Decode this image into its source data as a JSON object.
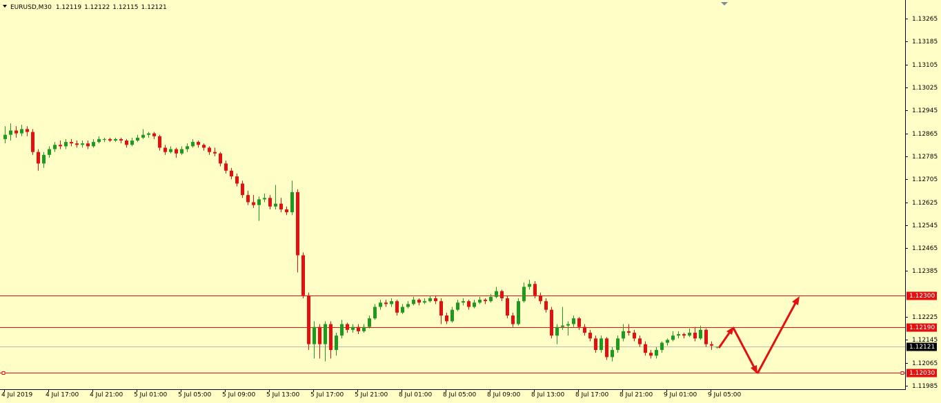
{
  "chart_data": {
    "type": "candlestick",
    "title": "EURUSD,M30",
    "background": "#fefec6",
    "up_color": "#1f9a1f",
    "down_color": "#e31010",
    "current_color": "#b8b8b8",
    "ylim": [
      1.11973,
      1.1333
    ],
    "yticks": [
      1.13265,
      1.13185,
      1.13105,
      1.13025,
      1.12945,
      1.12865,
      1.12785,
      1.12705,
      1.12625,
      1.12545,
      1.12465,
      1.12385,
      1.12225,
      1.12145,
      1.12065,
      1.11985
    ],
    "levels": [
      {
        "value": 1.123,
        "label": "1.12300",
        "color": "#e31010"
      },
      {
        "value": 1.1219,
        "label": "1.12190",
        "color": "#e31010"
      },
      {
        "value": 1.1203,
        "label": "1.12030",
        "color": "#e31010"
      }
    ],
    "categories": [
      "4 Jul 2019",
      null,
      null,
      null,
      null,
      null,
      null,
      null,
      "4 Jul 17:00",
      null,
      null,
      null,
      null,
      null,
      null,
      null,
      "4 Jul 21:00",
      null,
      null,
      null,
      null,
      null,
      null,
      null,
      "5 Jul 01:00",
      null,
      null,
      null,
      null,
      null,
      null,
      null,
      "5 Jul 05:00",
      null,
      null,
      null,
      null,
      null,
      null,
      null,
      "5 Jul 09:00",
      null,
      null,
      null,
      null,
      null,
      null,
      null,
      "5 Jul 13:00",
      null,
      null,
      null,
      null,
      null,
      null,
      null,
      "5 Jul 17:00",
      null,
      null,
      null,
      null,
      null,
      null,
      null,
      "5 Jul 21:00",
      null,
      null,
      null,
      null,
      null,
      null,
      null,
      "8 Jul 01:00",
      null,
      null,
      null,
      null,
      null,
      null,
      null,
      "8 Jul 05:00",
      null,
      null,
      null,
      null,
      null,
      null,
      null,
      "8 Jul 09:00",
      null,
      null,
      null,
      null,
      null,
      null,
      null,
      "8 Jul 13:00",
      null,
      null,
      null,
      null,
      null,
      null,
      null,
      "8 Jul 17:00",
      null,
      null,
      null,
      null,
      null,
      null,
      null,
      "8 Jul 21:00",
      null,
      null,
      null,
      null,
      null,
      null,
      null,
      "9 Jul 01:00",
      null,
      null,
      null,
      null,
      null,
      null,
      null,
      "9 Jul 05:00",
      null
    ],
    "series": [
      {
        "ohlc": [
          [
            1.12845,
            1.1289,
            1.1283,
            1.1286
          ],
          [
            1.1286,
            1.129,
            1.1284,
            1.12875
          ],
          [
            1.12875,
            1.1289,
            1.1285,
            1.12865
          ],
          [
            1.12865,
            1.12895,
            1.12855,
            1.1288
          ],
          [
            1.1288,
            1.1289,
            1.12855,
            1.1287
          ],
          [
            1.1287,
            1.1288,
            1.1279,
            1.128
          ],
          [
            1.128,
            1.1281,
            1.12735,
            1.1276
          ],
          [
            1.1276,
            1.128,
            1.12745,
            1.1279
          ],
          [
            1.1279,
            1.1282,
            1.1278,
            1.1281
          ],
          [
            1.1281,
            1.12835,
            1.128,
            1.12825
          ],
          [
            1.12825,
            1.1284,
            1.1281,
            1.1282
          ],
          [
            1.1282,
            1.12845,
            1.1281,
            1.12835
          ],
          [
            1.12835,
            1.12845,
            1.1282,
            1.1283
          ],
          [
            1.1283,
            1.1284,
            1.12815,
            1.12825
          ],
          [
            1.12825,
            1.1284,
            1.12815,
            1.1283
          ],
          [
            1.1283,
            1.1284,
            1.1281,
            1.1282
          ],
          [
            1.1282,
            1.12845,
            1.12815,
            1.12835
          ],
          [
            1.12835,
            1.12855,
            1.1283,
            1.12845
          ],
          [
            1.12845,
            1.1285,
            1.12835,
            1.12845
          ],
          [
            1.12845,
            1.1285,
            1.12835,
            1.1284
          ],
          [
            1.1284,
            1.1285,
            1.12835,
            1.12845
          ],
          [
            1.12845,
            1.1285,
            1.1283,
            1.1284
          ],
          [
            1.1284,
            1.12845,
            1.12815,
            1.12825
          ],
          [
            1.12825,
            1.1285,
            1.1282,
            1.1284
          ],
          [
            1.1284,
            1.1286,
            1.12835,
            1.1285
          ],
          [
            1.1285,
            1.1288,
            1.12845,
            1.1286
          ],
          [
            1.1286,
            1.1287,
            1.1285,
            1.12865
          ],
          [
            1.12865,
            1.1287,
            1.12845,
            1.12855
          ],
          [
            1.12855,
            1.1286,
            1.12805,
            1.12815
          ],
          [
            1.12815,
            1.12825,
            1.1279,
            1.128
          ],
          [
            1.128,
            1.1282,
            1.12795,
            1.1281
          ],
          [
            1.1281,
            1.12815,
            1.1278,
            1.12795
          ],
          [
            1.12795,
            1.1282,
            1.1279,
            1.1281
          ],
          [
            1.1281,
            1.1283,
            1.128,
            1.1282
          ],
          [
            1.1282,
            1.12845,
            1.12815,
            1.12835
          ],
          [
            1.12835,
            1.1284,
            1.12815,
            1.12825
          ],
          [
            1.12825,
            1.1283,
            1.12805,
            1.12815
          ],
          [
            1.12815,
            1.1282,
            1.1279,
            1.128
          ],
          [
            1.128,
            1.12815,
            1.12785,
            1.12795
          ],
          [
            1.12795,
            1.128,
            1.1275,
            1.1276
          ],
          [
            1.1276,
            1.1277,
            1.12725,
            1.12735
          ],
          [
            1.12735,
            1.12745,
            1.12705,
            1.12715
          ],
          [
            1.12715,
            1.12725,
            1.1268,
            1.1269
          ],
          [
            1.1269,
            1.127,
            1.1264,
            1.1265
          ],
          [
            1.1265,
            1.12665,
            1.12615,
            1.12625
          ],
          [
            1.12625,
            1.1265,
            1.12605,
            1.12615
          ],
          [
            1.12615,
            1.12645,
            1.1256,
            1.12635
          ],
          [
            1.12635,
            1.12655,
            1.12625,
            1.1264
          ],
          [
            1.1264,
            1.1265,
            1.126,
            1.1261
          ],
          [
            1.1261,
            1.12685,
            1.126,
            1.1262
          ],
          [
            1.1262,
            1.1264,
            1.1259,
            1.126
          ],
          [
            1.126,
            1.1261,
            1.1258,
            1.1259
          ],
          [
            1.1259,
            1.127,
            1.1258,
            1.1266
          ],
          [
            1.1266,
            1.1267,
            1.1238,
            1.1244
          ],
          [
            1.1244,
            1.1245,
            1.1229,
            1.123
          ],
          [
            1.123,
            1.1231,
            1.1211,
            1.1213
          ],
          [
            1.1213,
            1.1221,
            1.1208,
            1.1219
          ],
          [
            1.1219,
            1.122,
            1.1208,
            1.1213
          ],
          [
            1.1213,
            1.1221,
            1.1207,
            1.122
          ],
          [
            1.122,
            1.1221,
            1.1208,
            1.1211
          ],
          [
            1.1211,
            1.1217,
            1.1209,
            1.1216
          ],
          [
            1.1216,
            1.12215,
            1.1215,
            1.122
          ],
          [
            1.122,
            1.12205,
            1.1217,
            1.1218
          ],
          [
            1.1218,
            1.122,
            1.1217,
            1.1219
          ],
          [
            1.1219,
            1.122,
            1.12165,
            1.12175
          ],
          [
            1.12175,
            1.122,
            1.1217,
            1.1219
          ],
          [
            1.1219,
            1.1223,
            1.12185,
            1.1222
          ],
          [
            1.1222,
            1.1227,
            1.12215,
            1.1226
          ],
          [
            1.1226,
            1.12285,
            1.1225,
            1.12275
          ],
          [
            1.12275,
            1.12285,
            1.1226,
            1.1227
          ],
          [
            1.1227,
            1.1229,
            1.1226,
            1.1228
          ],
          [
            1.1228,
            1.12285,
            1.1223,
            1.1224
          ],
          [
            1.1224,
            1.1227,
            1.12235,
            1.1226
          ],
          [
            1.1226,
            1.1228,
            1.12255,
            1.1227
          ],
          [
            1.1227,
            1.12295,
            1.12265,
            1.12285
          ],
          [
            1.12285,
            1.1229,
            1.12265,
            1.12275
          ],
          [
            1.12275,
            1.1229,
            1.1227,
            1.1228
          ],
          [
            1.1228,
            1.123,
            1.12275,
            1.1229
          ],
          [
            1.1229,
            1.123,
            1.1227,
            1.1228
          ],
          [
            1.1228,
            1.1229,
            1.122,
            1.1223
          ],
          [
            1.1223,
            1.1224,
            1.122,
            1.1221
          ],
          [
            1.1221,
            1.1226,
            1.12205,
            1.1225
          ],
          [
            1.1225,
            1.12285,
            1.12245,
            1.12275
          ],
          [
            1.12275,
            1.1229,
            1.12265,
            1.1228
          ],
          [
            1.1228,
            1.12285,
            1.1225,
            1.1226
          ],
          [
            1.1226,
            1.12285,
            1.12255,
            1.12275
          ],
          [
            1.12275,
            1.12295,
            1.1227,
            1.12285
          ],
          [
            1.12285,
            1.1229,
            1.1227,
            1.1228
          ],
          [
            1.1228,
            1.12305,
            1.12275,
            1.12295
          ],
          [
            1.12295,
            1.1233,
            1.1229,
            1.12315
          ],
          [
            1.12315,
            1.1232,
            1.1228,
            1.1229
          ],
          [
            1.1229,
            1.123,
            1.1222,
            1.1223
          ],
          [
            1.1223,
            1.1224,
            1.1219,
            1.122
          ],
          [
            1.122,
            1.1229,
            1.12195,
            1.1228
          ],
          [
            1.1228,
            1.12345,
            1.12275,
            1.1233
          ],
          [
            1.1233,
            1.12355,
            1.1232,
            1.1234
          ],
          [
            1.1234,
            1.1235,
            1.1229,
            1.123
          ],
          [
            1.123,
            1.1231,
            1.1227,
            1.1228
          ],
          [
            1.1228,
            1.1229,
            1.1224,
            1.1225
          ],
          [
            1.1225,
            1.1226,
            1.1215,
            1.1216
          ],
          [
            1.1216,
            1.122,
            1.1213,
            1.1219
          ],
          [
            1.1219,
            1.1226,
            1.1218,
            1.12195
          ],
          [
            1.12195,
            1.1221,
            1.1216,
            1.122
          ],
          [
            1.122,
            1.1223,
            1.1219,
            1.1222
          ],
          [
            1.1222,
            1.12225,
            1.1218,
            1.1219
          ],
          [
            1.1219,
            1.122,
            1.1216,
            1.1217
          ],
          [
            1.1217,
            1.1218,
            1.1214,
            1.1215
          ],
          [
            1.1215,
            1.1216,
            1.121,
            1.1211
          ],
          [
            1.1211,
            1.1216,
            1.121,
            1.1215
          ],
          [
            1.1215,
            1.12155,
            1.12075,
            1.12085
          ],
          [
            1.12085,
            1.1212,
            1.1207,
            1.1211
          ],
          [
            1.1211,
            1.1216,
            1.121,
            1.1215
          ],
          [
            1.1215,
            1.122,
            1.1214,
            1.12175
          ],
          [
            1.12175,
            1.122,
            1.1216,
            1.1217
          ],
          [
            1.1217,
            1.1218,
            1.1214,
            1.1215
          ],
          [
            1.1215,
            1.1216,
            1.1212,
            1.1213
          ],
          [
            1.1213,
            1.1214,
            1.1209,
            1.121
          ],
          [
            1.121,
            1.1211,
            1.1208,
            1.1209
          ],
          [
            1.1209,
            1.1212,
            1.1208,
            1.1211
          ],
          [
            1.1211,
            1.1214,
            1.121,
            1.12135
          ],
          [
            1.12135,
            1.1215,
            1.12125,
            1.12145
          ],
          [
            1.12145,
            1.12175,
            1.1214,
            1.1216
          ],
          [
            1.1216,
            1.12175,
            1.1215,
            1.12165
          ],
          [
            1.12165,
            1.1217,
            1.1215,
            1.1216
          ],
          [
            1.1216,
            1.12185,
            1.12155,
            1.1217
          ],
          [
            1.1217,
            1.1219,
            1.1214,
            1.1215
          ],
          [
            1.1215,
            1.12195,
            1.12145,
            1.1218
          ],
          [
            1.1218,
            1.12185,
            1.1212,
            1.1213
          ],
          [
            1.1213,
            1.1214,
            1.1211,
            1.12125
          ],
          [
            1.12119,
            1.12122,
            1.12115,
            1.12121
          ]
        ]
      }
    ]
  }
}
